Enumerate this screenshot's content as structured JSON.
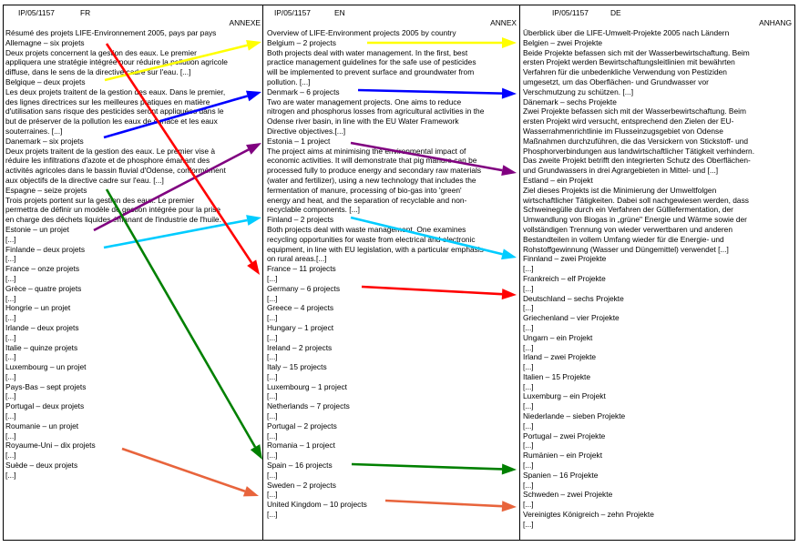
{
  "columns": [
    {
      "ref": "IP/05/1157",
      "lang": "FR",
      "annex": "ANNEXE",
      "lines": [
        "Résumé des projets LIFE-Environnement 2005, pays par pays",
        "Allemagne – six projets",
        "Deux projets concernent la gestion des eaux. Le premier",
        "appliquera une stratégie intégrée pour réduire la pollution agricole",
        "diffuse, dans le sens de la directive cadre sur l'eau. [...]",
        "Belgique – deux projets",
        "Les deux projets traitent de la gestion des eaux. Dans le premier,",
        "des lignes directrices sur les meilleures pratiques en matière",
        "d'utilisation sans risque des pesticides seront appliquées dans le",
        "but de préserver de la pollution les eaux de surface et les eaux",
        "souterraines. [...]",
        "Danemark – six projets",
        "Deux projets traitent de la gestion des eaux. Le premier vise à",
        "réduire les infiltrations d'azote et de phosphore émanant des",
        "activités agricoles dans le bassin fluvial d'Odense, conformément",
        "aux objectifs de la directive cadre sur l'eau. [...]",
        "Espagne – seize projets",
        "Trois projets portent sur la gestion des eaux. Le premier",
        "permettra de définir un modèle de gestion intégrée pour la prise",
        "en charge des déchets liquides émanant de l'industrie de l'huile.",
        "Estonie – un projet",
        "[...]",
        "Finlande – deux projets",
        "[...]",
        "France – onze projets",
        "[...]",
        "Grèce – quatre projets",
        "[...]",
        "Hongrie – un projet",
        "[...]",
        "Irlande – deux projets",
        "[...]",
        "Italie – quinze projets",
        "[...]",
        "Luxembourg – un projet",
        "[...]",
        "Pays-Bas – sept projets",
        "[...]",
        "Portugal – deux projets",
        "[...]",
        "Roumanie – un projet",
        "[...]",
        "Royaume-Uni – dix projets",
        "[...]",
        "Suède – deux projets",
        "[...]"
      ]
    },
    {
      "ref": "IP/05/1157",
      "lang": "EN",
      "annex": "ANNEX",
      "lines": [
        "Overview of LIFE-Environment projects 2005 by country",
        "Belgium – 2 projects",
        "Both projects deal with water management. In the first, best",
        "practice management guidelines for the safe use of pesticides",
        "will be implemented to prevent surface and groundwater from",
        "pollution. [...]",
        "Denmark – 6 projects",
        "Two are water management projects. One aims to reduce",
        "nitrogen and phosphorus losses from agricultural activities in the",
        "Odense river basin, in line with the EU Water Framework",
        "Directive objectives.[...]",
        "Estonia – 1 project",
        "The project aims at minimising the environmental impact of",
        "economic activities. It will demonstrate that pig manure can be",
        "processed fully to produce energy and secondary raw materials",
        "(water and fertilizer), using a new technology that includes the",
        "fermentation of manure, processing of bio-gas into 'green'",
        "energy and heat, and the separation of recyclable and non-",
        "recyclable components. [...]",
        "Finland – 2 projects",
        "Both projects deal with waste management. One examines",
        "recycling opportunities for waste from electrical and electronic",
        "equipment, in line with EU legislation, with a particular emphasis",
        "on rural areas.[...]",
        "France – 11 projects",
        "[...]",
        "Germany – 6 projects",
        "[...]",
        "Greece – 4 projects",
        "[...]",
        "Hungary – 1 project",
        "[...]",
        "Ireland – 2 projects",
        "[...]",
        "Italy – 15 projects",
        "[...]",
        "Luxembourg – 1 project",
        "[...]",
        "Netherlands – 7 projects",
        "[...]",
        "Portugal – 2 projects",
        "[...]",
        "Romania – 1 project",
        "[...]",
        "Spain – 16 projects",
        "[...]",
        "Sweden – 2 projects",
        "[...]",
        "United Kingdom – 10 projects",
        "[...]"
      ]
    },
    {
      "ref": "IP/05/1157",
      "lang": "DE",
      "annex": "ANHANG",
      "lines": [
        "Überblick über die LIFE-Umwelt-Projekte 2005 nach Ländern",
        "Belgien – zwei Projekte",
        "Beide Projekte befassen sich mit der Wasserbewirtschaftung. Beim",
        "ersten Projekt werden Bewirtschaftungsleitlinien mit bewährten",
        "Verfahren für die unbedenkliche Verwendung von Pestiziden",
        "umgesetzt, um das Oberflächen- und Grundwasser vor",
        "Verschmutzung zu schützen. [...]",
        "Dänemark – sechs Projekte",
        "Zwei Projekte befassen sich mit der Wasserbewirtschaftung. Beim",
        "ersten Projekt wird versucht, entsprechend den Zielen der EU-",
        "Wasserrahmenrichtlinie im Flusseinzugsgebiet von Odense",
        "Maßnahmen durchzuführen, die das Versickern von Stickstoff- und",
        "Phosphorverbindungen aus landwirtschaftlicher Tätigkeit verhindern.",
        "Das zweite Projekt betrifft den integrierten Schutz des Oberflächen-",
        "und Grundwassers in drei Agrargebieten in Mittel- und [...]",
        "Estland – ein Projekt",
        "Ziel dieses Projekts ist die Minimierung der Umweltfolgen",
        "wirtschaftlicher Tätigkeiten. Dabei soll nachgewiesen werden, dass",
        "Schweinegülle durch ein Verfahren der Gülllefermentation, der",
        "Umwandlung von Biogas in „grüne\" Energie und Wärme sowie der",
        "vollständigen Trennung von wieder verwertbaren und anderen",
        "Bestandteilen in vollem Umfang wieder für die Energie- und",
        "Rohstoffgewinnung (Wasser und Düngemittel) verwendet [...]",
        "Finnland – zwei Projekte",
        "[...]",
        "Frankreich – elf Projekte",
        "[...]",
        "Deutschland – sechs Projekte",
        "[...]",
        "Griechenland – vier Projekte",
        "[...]",
        "Ungarn – ein Projekt",
        "[...]",
        "Irland – zwei Projekte",
        "[...]",
        "Italien – 15 Projekte",
        "[...]",
        "Luxemburg – ein Projekt",
        "[...]",
        "Niederlande – sieben Projekte",
        "[...]",
        "Portugal – zwei Projekte",
        "[...]",
        "Rumänien – ein Projekt",
        "[...]",
        "Spanien – 16 Projekte",
        "[...]",
        "Schweden – zwei Projekte",
        "[...]",
        "Vereinigtes Königreich – zehn Projekte",
        "[...]"
      ]
    }
  ],
  "arrows": [
    {
      "name": "belgium-fr-en-arrow",
      "color": "#ffff00"
    },
    {
      "name": "belgium-en-de-arrow",
      "color": "#ffff00"
    },
    {
      "name": "denmark-fr-en-arrow",
      "color": "#0000ff"
    },
    {
      "name": "denmark-en-de-arrow",
      "color": "#0000ff"
    },
    {
      "name": "estonia-fr-en-arrow",
      "color": "#800080"
    },
    {
      "name": "estonia-en-de-arrow",
      "color": "#800080"
    },
    {
      "name": "finland-fr-en-arrow",
      "color": "#00ccff"
    },
    {
      "name": "finland-en-de-arrow",
      "color": "#00ccff"
    },
    {
      "name": "germany-fr-en-arrow",
      "color": "#ff0000"
    },
    {
      "name": "germany-en-de-arrow",
      "color": "#ff0000"
    },
    {
      "name": "spain-fr-en-arrow",
      "color": "#008000"
    },
    {
      "name": "spain-en-de-arrow",
      "color": "#008000"
    },
    {
      "name": "uk-fr-en-arrow",
      "color": "#e8643c"
    },
    {
      "name": "uk-en-de-arrow",
      "color": "#e8643c"
    }
  ]
}
